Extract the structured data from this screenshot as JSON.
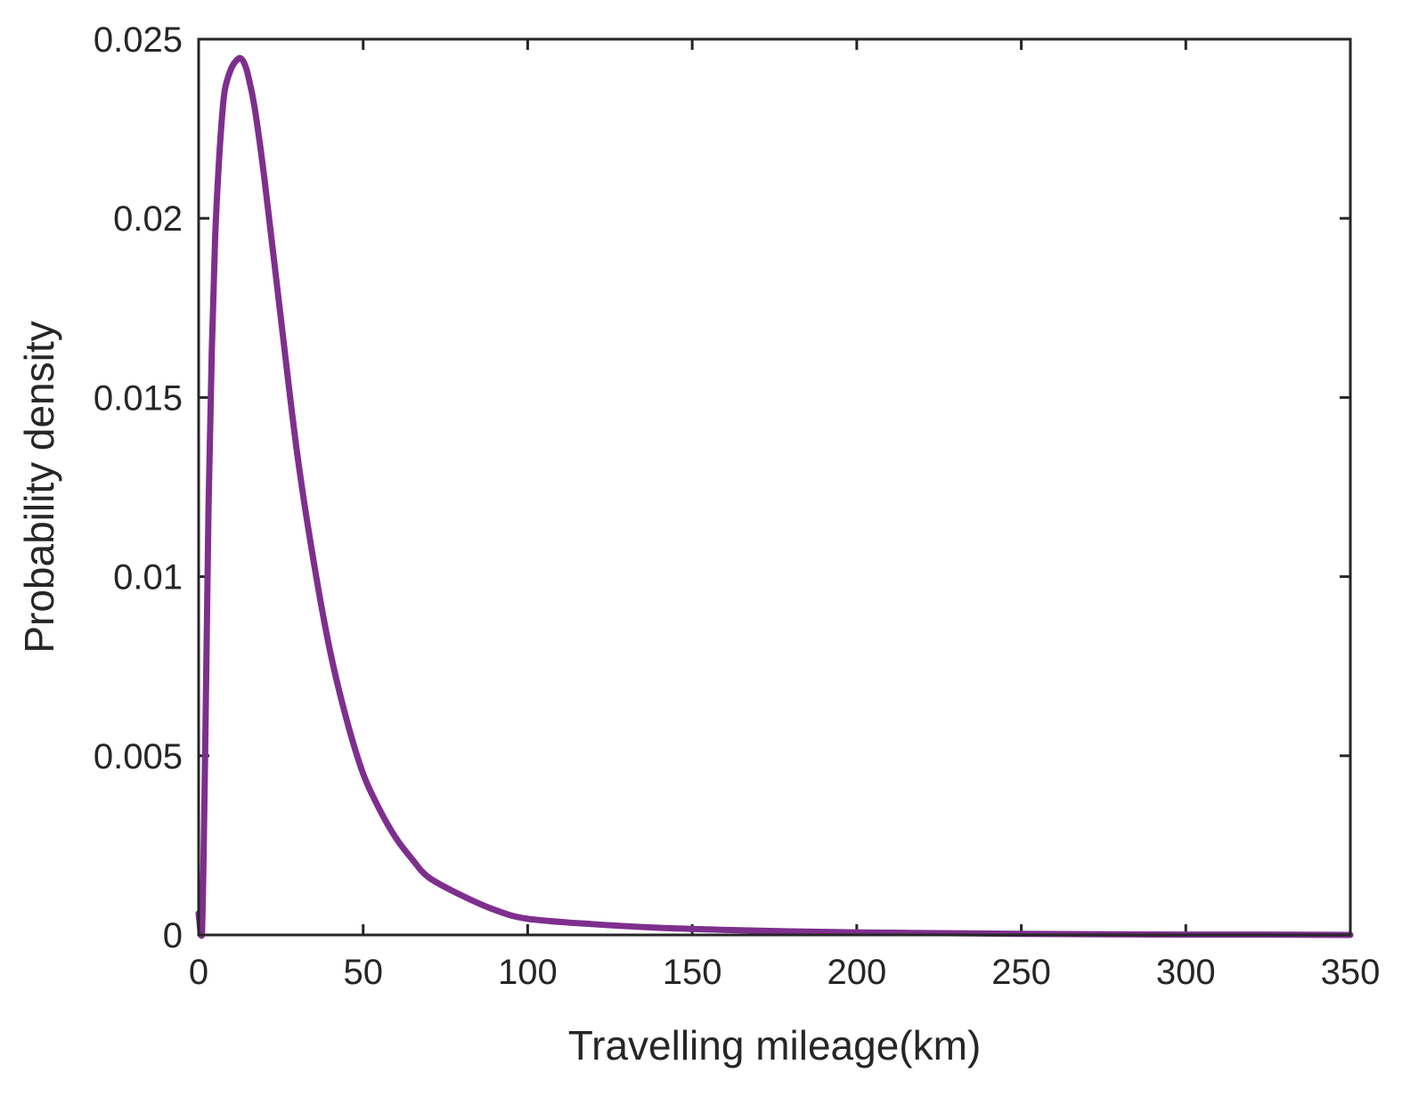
{
  "chart_data": {
    "type": "line",
    "title": "",
    "xlabel": "Travelling mileage(km)",
    "ylabel": "Probability density",
    "xlim": [
      0,
      350
    ],
    "ylim": [
      0,
      0.025
    ],
    "x_ticks": [
      0,
      50,
      100,
      150,
      200,
      250,
      300,
      350
    ],
    "x_tick_labels": [
      "0",
      "50",
      "100",
      "150",
      "200",
      "250",
      "300",
      "350"
    ],
    "y_ticks": [
      0,
      0.005,
      0.01,
      0.015,
      0.02,
      0.025
    ],
    "y_tick_labels": [
      "0",
      "0.005",
      "0.01",
      "0.015",
      "0.02",
      "0.025"
    ],
    "grid": false,
    "box": true,
    "series": [
      {
        "color": "#7E2F8E",
        "x": [
          0,
          1,
          2,
          3,
          4,
          5,
          6,
          7,
          8,
          10,
          12,
          13,
          14,
          15,
          17,
          20,
          25,
          30,
          35,
          40,
          45,
          50,
          55,
          60,
          65,
          70,
          80,
          90,
          100,
          120,
          140,
          160,
          180,
          200,
          225,
          250,
          275,
          300,
          325,
          350
        ],
        "y": [
          0.0006,
          0.0,
          0.0052,
          0.0119,
          0.0163,
          0.0194,
          0.0213,
          0.0227,
          0.0236,
          0.0242,
          0.02445,
          0.02445,
          0.0243,
          0.024,
          0.0231,
          0.0211,
          0.0172,
          0.0134,
          0.0104,
          0.0079,
          0.006,
          0.0045,
          0.0035,
          0.0027,
          0.0021,
          0.0016,
          0.0011,
          0.0007,
          0.00045,
          0.0003,
          0.0002,
          0.00014,
          0.0001,
          7e-05,
          5e-05,
          3e-05,
          2e-05,
          1e-05,
          1e-05,
          0.0
        ]
      }
    ]
  }
}
